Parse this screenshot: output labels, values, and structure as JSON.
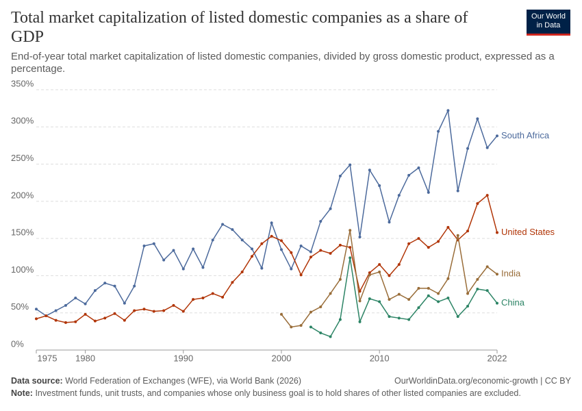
{
  "header": {
    "title": "Total market capitalization of listed domestic companies as a share of GDP",
    "subtitle": "End-of-year total market capitalization of listed domestic companies, divided by gross domestic product, expressed as a percentage.",
    "logo": [
      "Our World",
      "in Data"
    ]
  },
  "chart_data": {
    "type": "line",
    "x": [
      1975,
      1976,
      1977,
      1978,
      1979,
      1980,
      1981,
      1982,
      1983,
      1984,
      1985,
      1986,
      1987,
      1988,
      1989,
      1990,
      1991,
      1992,
      1993,
      1994,
      1995,
      1996,
      1997,
      1998,
      1999,
      2000,
      2001,
      2002,
      2003,
      2004,
      2005,
      2006,
      2007,
      2008,
      2009,
      2010,
      2011,
      2012,
      2013,
      2014,
      2015,
      2016,
      2017,
      2018,
      2019,
      2020,
      2021,
      2022
    ],
    "xlim": [
      1975,
      2022
    ],
    "xticks": [
      1975,
      1980,
      1990,
      2000,
      2010,
      2022
    ],
    "ylim": [
      0,
      350
    ],
    "yticks": [
      {
        "value": 0,
        "label": "0%"
      },
      {
        "value": 50,
        "label": "50%"
      },
      {
        "value": 100,
        "label": "100%"
      },
      {
        "value": 150,
        "label": "150%"
      },
      {
        "value": 200,
        "label": "200%"
      },
      {
        "value": 250,
        "label": "250%"
      },
      {
        "value": 300,
        "label": "300%"
      },
      {
        "value": 350,
        "label": "350%"
      }
    ],
    "grid": true,
    "series": [
      {
        "name": "South Africa",
        "color": "#4c6a9c",
        "values": [
          55,
          46,
          53,
          60,
          70,
          62,
          80,
          90,
          86,
          63,
          86,
          140,
          143,
          121,
          134,
          109,
          136,
          111,
          148,
          169,
          162,
          148,
          136,
          110,
          171,
          135,
          109,
          140,
          132,
          173,
          190,
          234,
          249,
          152,
          242,
          221,
          172,
          208,
          235,
          245,
          212,
          294,
          322,
          214,
          271,
          311,
          272,
          288
        ]
      },
      {
        "name": "United States",
        "color": "#b13507",
        "values": [
          42,
          46,
          40,
          37,
          38,
          48,
          39,
          43,
          49,
          40,
          53,
          55,
          52,
          53,
          60,
          52,
          68,
          70,
          76,
          71,
          91,
          105,
          126,
          143,
          153,
          147,
          131,
          101,
          125,
          134,
          130,
          141,
          138,
          79,
          104,
          115,
          100,
          115,
          143,
          150,
          138,
          146,
          165,
          148,
          160,
          197,
          208,
          158
        ]
      },
      {
        "name": "India",
        "color": "#996d39",
        "values": [
          null,
          null,
          null,
          null,
          null,
          null,
          null,
          null,
          null,
          null,
          null,
          null,
          null,
          null,
          null,
          null,
          null,
          null,
          null,
          null,
          null,
          null,
          null,
          null,
          null,
          48,
          31,
          33,
          51,
          58,
          76,
          95,
          161,
          66,
          101,
          105,
          68,
          75,
          68,
          83,
          83,
          76,
          96,
          154,
          76,
          95,
          112,
          102
        ]
      },
      {
        "name": "China",
        "color": "#2c8465",
        "values": [
          null,
          null,
          null,
          null,
          null,
          null,
          null,
          null,
          null,
          null,
          null,
          null,
          null,
          null,
          null,
          null,
          null,
          null,
          null,
          null,
          null,
          null,
          null,
          null,
          null,
          null,
          null,
          null,
          31,
          23,
          18,
          41,
          124,
          38,
          69,
          65,
          45,
          43,
          41,
          57,
          73,
          65,
          70,
          45,
          59,
          82,
          80,
          63
        ]
      }
    ]
  },
  "footer": {
    "source_label": "Data source:",
    "source": "World Federation of Exchanges (WFE), via World Bank (2026)",
    "url": "OurWorldinData.org/economic-growth | CC BY",
    "note_label": "Note:",
    "note": "Investment funds, unit trusts, and companies whose only business goal is to hold shares of other listed companies are excluded."
  }
}
